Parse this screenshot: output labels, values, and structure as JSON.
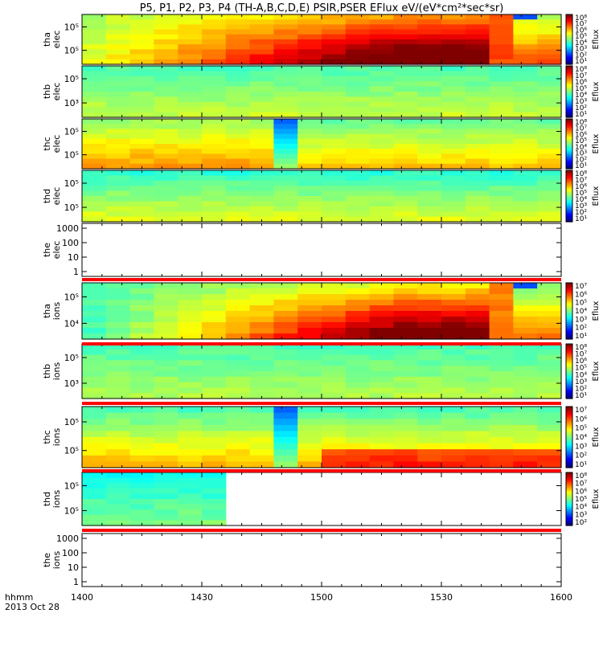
{
  "chart_data": {
    "type": "heatmap",
    "title": "P5, P1, P2, P3, P4 (TH-A,B,C,D,E) PSIR,PSER EFlux eV/(eV*cm²*sec*sr)",
    "time_label": "hhmm",
    "date_label": "2013 Oct 28",
    "x_ticks": [
      "1400",
      "1430",
      "1500",
      "1530",
      "1600"
    ],
    "x_tick_values": [
      0,
      30,
      60,
      90,
      120
    ],
    "colorbar_label": "Eflux",
    "panels": [
      {
        "id": "tha-elec",
        "label1": "tha",
        "label2": "elec",
        "yticks": [
          "10⁵",
          "10⁵"
        ],
        "colorbar": [
          "10⁸",
          "10⁷",
          "10⁶",
          "10⁵",
          "10⁴",
          "10³",
          "10²",
          "10¹"
        ],
        "filled": true
      },
      {
        "id": "thb-elec",
        "label1": "thb",
        "label2": "elec",
        "yticks": [
          "10⁵",
          "10³"
        ],
        "colorbar": [
          "10⁸",
          "10⁷",
          "10⁶",
          "10⁵",
          "10⁴",
          "10³",
          "10²",
          "10¹"
        ],
        "filled": true
      },
      {
        "id": "thc-elec",
        "label1": "thc",
        "label2": "elec",
        "yticks": [
          "10⁵",
          "10⁵"
        ],
        "colorbar": [
          "10⁸",
          "10⁷",
          "10⁶",
          "10⁵",
          "10⁴",
          "10³",
          "10²",
          "10¹"
        ],
        "filled": true
      },
      {
        "id": "thd-elec",
        "label1": "thd",
        "label2": "elec",
        "yticks": [
          "10⁵",
          "10⁵"
        ],
        "colorbar": [
          "10⁸",
          "10⁷",
          "10⁶",
          "10⁵",
          "10⁴",
          "10³",
          "10²",
          "10¹"
        ],
        "filled": true
      },
      {
        "id": "the-elec",
        "label1": "the",
        "label2": "elec",
        "yticks": [
          "1000",
          "100",
          "10",
          "1"
        ],
        "colorbar": [],
        "filled": false
      },
      {
        "id": "tha-ions",
        "label1": "tha",
        "label2": "ions",
        "yticks": [
          "10⁵",
          "10⁴"
        ],
        "colorbar": [
          "10⁷",
          "10⁶",
          "10⁵",
          "10⁴",
          "10³",
          "10²",
          "10¹"
        ],
        "filled": true
      },
      {
        "id": "thb-ions",
        "label1": "thb",
        "label2": "ions",
        "yticks": [
          "10⁵",
          "10³"
        ],
        "colorbar": [
          "10⁸",
          "10⁷",
          "10⁶",
          "10⁵",
          "10⁴",
          "10³",
          "10²",
          "10¹"
        ],
        "filled": true
      },
      {
        "id": "thc-ions",
        "label1": "thc",
        "label2": "ions",
        "yticks": [
          "10⁵",
          "10⁵"
        ],
        "colorbar": [
          "10⁷",
          "10⁶",
          "10⁵",
          "10⁴",
          "10³",
          "10²",
          "10¹"
        ],
        "filled": true
      },
      {
        "id": "thd-ions",
        "label1": "thd",
        "label2": "ions",
        "yticks": [
          "10⁵",
          "10⁵"
        ],
        "colorbar": [
          "10⁸",
          "10⁷",
          "10⁶",
          "10⁵",
          "10⁴",
          "10³",
          "10²"
        ],
        "filled": true
      },
      {
        "id": "the-ions",
        "label1": "the",
        "label2": "ions",
        "yticks": [
          "1000",
          "100",
          "10",
          "1"
        ],
        "colorbar": [],
        "filled": false
      }
    ]
  }
}
